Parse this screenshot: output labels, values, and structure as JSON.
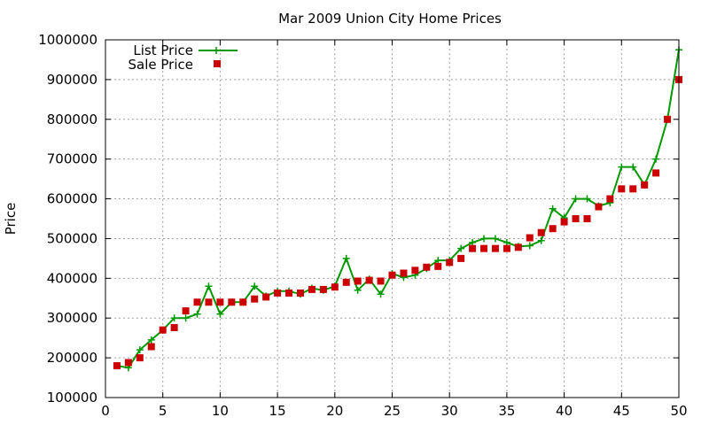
{
  "chart_data": {
    "type": "line",
    "title": "Mar 2009 Union City Home Prices",
    "xlabel": "",
    "ylabel": "Price",
    "xlim": [
      0,
      50
    ],
    "ylim": [
      100000,
      1000000
    ],
    "xticks": [
      0,
      5,
      10,
      15,
      20,
      25,
      30,
      35,
      40,
      45,
      50
    ],
    "yticks": [
      100000,
      200000,
      300000,
      400000,
      500000,
      600000,
      700000,
      800000,
      900000,
      1000000
    ],
    "grid": true,
    "legend_position": "top-left",
    "x": [
      1,
      2,
      3,
      4,
      5,
      6,
      7,
      8,
      9,
      10,
      11,
      12,
      13,
      14,
      15,
      16,
      17,
      18,
      19,
      20,
      21,
      22,
      23,
      24,
      25,
      26,
      27,
      28,
      29,
      30,
      31,
      32,
      33,
      34,
      35,
      36,
      37,
      38,
      39,
      40,
      41,
      42,
      43,
      44,
      45,
      46,
      47,
      48,
      49,
      50
    ],
    "series": [
      {
        "name": "List Price",
        "style": "line-plus",
        "color": "#009900",
        "values": [
          180000,
          175000,
          220000,
          245000,
          270000,
          300000,
          300000,
          310000,
          380000,
          310000,
          340000,
          340000,
          380000,
          355000,
          368000,
          368000,
          360000,
          375000,
          370000,
          380000,
          450000,
          370000,
          398000,
          360000,
          412000,
          402000,
          408000,
          425000,
          445000,
          445000,
          475000,
          490000,
          500000,
          500000,
          490000,
          480000,
          482000,
          495000,
          575000,
          552000,
          600000,
          600000,
          582000,
          590000,
          680000,
          680000,
          635000,
          700000,
          800000,
          975000
        ]
      },
      {
        "name": "Sale Price",
        "style": "points-square",
        "color": "#cc0000",
        "values": [
          180000,
          188000,
          200000,
          228000,
          270000,
          276000,
          318000,
          340000,
          340000,
          340000,
          340000,
          340000,
          348000,
          353000,
          363000,
          363000,
          363000,
          372000,
          372000,
          378000,
          390000,
          393000,
          395000,
          393000,
          408000,
          413000,
          420000,
          428000,
          430000,
          440000,
          450000,
          475000,
          475000,
          475000,
          475000,
          478000,
          502000,
          515000,
          525000,
          542000,
          550000,
          550000,
          580000,
          600000,
          625000,
          625000,
          635000,
          665000,
          800000,
          900000
        ]
      }
    ]
  }
}
